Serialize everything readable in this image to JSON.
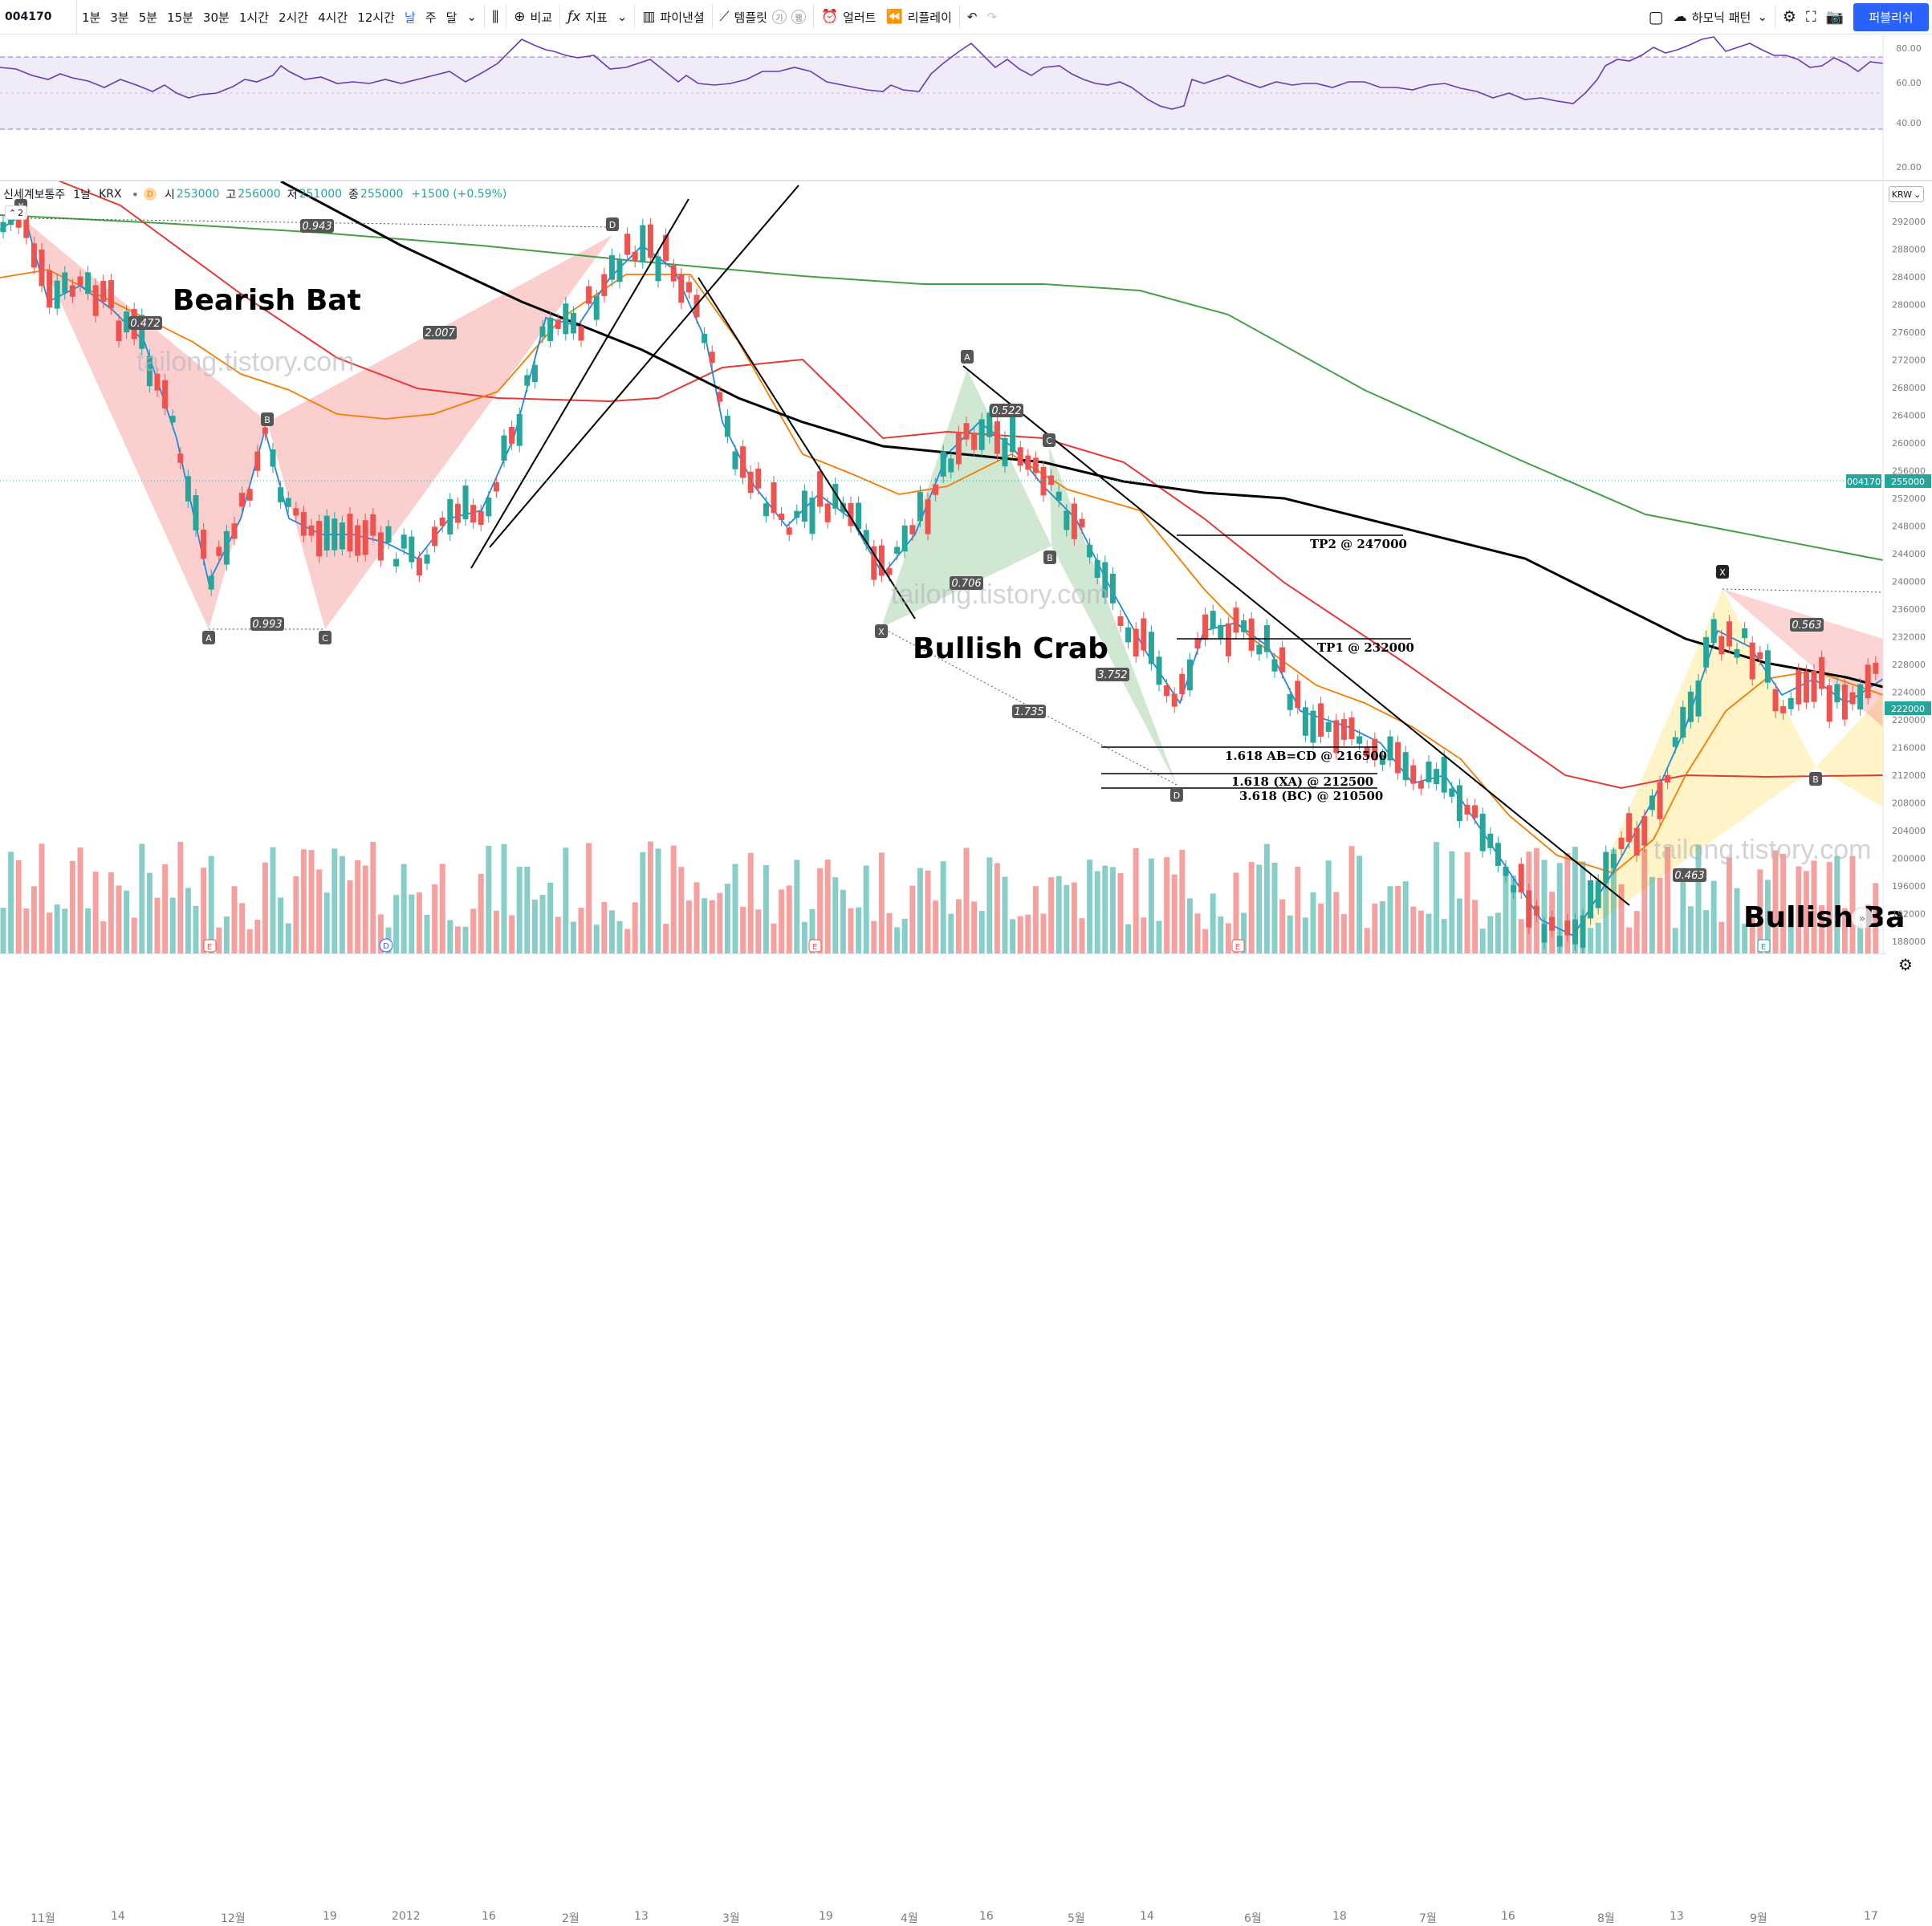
{
  "toolbar": {
    "symbol": "004170",
    "intervals": [
      "1분",
      "3분",
      "5분",
      "15분",
      "30분",
      "1시간",
      "2시간",
      "4시간",
      "12시간",
      "날",
      "주",
      "달"
    ],
    "active_interval": "날",
    "compare": "비교",
    "indicators": "지표",
    "financials": "파이낸셜",
    "templates": "템플릿",
    "alert": "얼러트",
    "replay": "리플레이",
    "harmonic": "하모닉 패턴",
    "publish": "퍼블리쉬",
    "pill_a": "기",
    "pill_b": "웹"
  },
  "legend": {
    "name": "신세계보통주",
    "interval": "1날",
    "exchange": "KRX",
    "dot": "D",
    "open_label": "시",
    "open": "253000",
    "high_label": "고",
    "high": "256000",
    "low_label": "저",
    "low": "251000",
    "close_label": "종",
    "close": "255000",
    "change": "+1500 (+0.59%)",
    "collapse_count": "2"
  },
  "currency": "KRW",
  "rsi_axis": [
    "80.00",
    "60.00",
    "40.00",
    "20.00"
  ],
  "price_axis": [
    "292000",
    "288000",
    "284000",
    "280000",
    "276000",
    "272000",
    "268000",
    "264000",
    "260000",
    "256000",
    "252000",
    "248000",
    "244000",
    "240000",
    "236000",
    "232000",
    "228000",
    "224000",
    "220000",
    "216000",
    "212000",
    "208000",
    "204000",
    "200000",
    "196000",
    "192000",
    "188000"
  ],
  "price_tags": {
    "symbol_tag": "004170",
    "last": "255000",
    "right_tag": "222000"
  },
  "time_axis": [
    "11월",
    "14",
    "12월",
    "19",
    "2012",
    "16",
    "2월",
    "13",
    "3월",
    "19",
    "4월",
    "16",
    "5월",
    "14",
    "6월",
    "18",
    "7월",
    "16",
    "8월",
    "13",
    "9월",
    "17"
  ],
  "event_markers": [
    "E",
    "D",
    "E",
    "E",
    "E"
  ],
  "annotations": {
    "bearish_bat": "Bearish Bat",
    "bullish_crab": "Bullish Crab",
    "bullish_bat": "Bullish Ba",
    "watermark": "tailong.tistory.com",
    "tp2": "TP2 @ 247000",
    "tp1": "TP1 @ 232000",
    "abcd": "1.618 AB=CD @ 216500",
    "xa": "1.618 (XA) @ 212500",
    "bc": "3.618 (BC) @ 210500",
    "ratios": [
      "0.943",
      "0.472",
      "2.007",
      "0.993",
      "0.522",
      "0.706",
      "3.752",
      "1.735",
      "0.563",
      "0.463"
    ],
    "points": [
      "X",
      "A",
      "B",
      "C",
      "D"
    ]
  },
  "colors": {
    "up": "#26a69a",
    "down": "#ef5350",
    "accent": "#2962ff",
    "rsi_band": "#7e57c2",
    "ma_green": "#43a047",
    "ma_red": "#e53935",
    "ma_orange": "#f57c00",
    "ma_blue": "#1e88e5",
    "ma_black": "#000000"
  }
}
